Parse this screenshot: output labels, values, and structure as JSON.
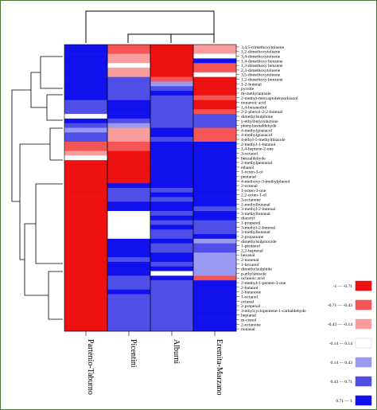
{
  "chart_data": {
    "type": "heatmap",
    "columns": [
      "Partenio-Taburno",
      "Picentini",
      "Alburni",
      "Eremita-Marzano"
    ],
    "rows": [
      "3,4,5-trimethoxytoluene",
      "1,2-dimethoxytoluene",
      "3,4-dimethoxytoluene",
      "1,4-dimethoxy benzene",
      "1,3-dimethoxy benzene",
      "2,3-dimethoxytoluene",
      "3,5-dimethoxytoluene",
      "1,2-dimethoxy benzene",
      "1-2-butenal",
      "pyrrole",
      "m-methylanisole",
      "2-methyl-mercaptobenzothiazol",
      "nonanoic acid",
      "1,4-butanediol",
      "2-2-phenyl-2-2-butenal",
      "dimethylsulphone",
      "y-ethylbutyrolactone",
      "phenylacetaldehyde",
      "4-methylguaiacol",
      "4-methylguaiacol",
      "4-ethyl-5-methylthiazole",
      "2-methyl-1-butanol",
      "1,4-heptene-2-one",
      "3-octanol",
      "benzaldehyde",
      "2-methylpentanal",
      "ethanol",
      "1-octen-3-ol",
      "pentanal",
      "4-methoxy-3-methylphenol",
      "2-octenal",
      "1-octen-3-one",
      "2,2-octen-1-ol",
      "3-octanone",
      "2-methylbutanal",
      "3-methyl-2-butenal",
      "3-methylbutanal",
      "diacetyl",
      "1-propanol",
      "3-methyl-2-butenal",
      "3-methylbutanal",
      "2-propanone",
      "dimethylsulphoxide",
      "1-pentanol",
      "2,2-heptenal",
      "hexanal",
      "2-nonenal",
      "1-hexanol",
      "dimethylsulphide",
      "p-ethylanisole",
      "octanoic acid",
      "2-methyl-1-penten-3-one",
      "2-butanol",
      "2-butanone",
      "1-octanol",
      "octanal",
      "2-propenal",
      "3-ethylcyclopentene-1-carbaldehyde",
      "heptanal",
      "m-cresol",
      "2-octanone",
      "nonanal"
    ],
    "values": [
      [
        0.9,
        -0.5,
        -0.9,
        -0.2
      ],
      [
        0.9,
        -0.6,
        -0.9,
        -0.3
      ],
      [
        0.9,
        -0.3,
        -0.9,
        0.1
      ],
      [
        0.9,
        -0.2,
        -0.8,
        0.8
      ],
      [
        0.9,
        -0.1,
        -0.8,
        -0.6
      ],
      [
        0.9,
        -0.3,
        -0.9,
        -0.5
      ],
      [
        0.9,
        -0.2,
        -0.9,
        0.0
      ],
      [
        0.85,
        0.5,
        -0.6,
        -0.9
      ],
      [
        0.8,
        0.6,
        0.4,
        -0.9
      ],
      [
        0.8,
        0.6,
        0.5,
        -0.9
      ],
      [
        0.8,
        0.7,
        0.8,
        -0.9
      ],
      [
        0.75,
        0.7,
        0.7,
        -0.7
      ],
      [
        0.7,
        0.8,
        0.6,
        -0.8
      ],
      [
        0.6,
        0.8,
        0.7,
        -0.8
      ],
      [
        0.6,
        0.8,
        0.7,
        -0.6
      ],
      [
        0.0,
        0.8,
        0.6,
        0.5
      ],
      [
        0.9,
        0.6,
        0.6,
        0.6
      ],
      [
        0.7,
        0.3,
        0.6,
        0.5
      ],
      [
        0.4,
        -0.2,
        0.9,
        -0.6
      ],
      [
        0.5,
        -0.2,
        0.8,
        -0.7
      ],
      [
        0.6,
        -0.3,
        0.5,
        -0.5
      ],
      [
        -0.5,
        -0.7,
        0.9,
        0.8
      ],
      [
        -0.5,
        -0.7,
        0.9,
        0.8
      ],
      [
        -0.3,
        -0.8,
        0.9,
        0.8
      ],
      [
        0.0,
        -0.8,
        0.9,
        0.8
      ],
      [
        -0.9,
        -0.8,
        0.8,
        0.8
      ],
      [
        -0.9,
        -0.8,
        0.8,
        0.8
      ],
      [
        -0.9,
        -0.8,
        0.9,
        0.8
      ],
      [
        -0.9,
        -0.8,
        0.9,
        0.8
      ],
      [
        -0.9,
        -0.8,
        0.9,
        0.9
      ],
      [
        -0.9,
        0.9,
        0.9,
        0.9
      ],
      [
        -0.9,
        0.5,
        0.5,
        0.8
      ],
      [
        -0.9,
        0.7,
        0.9,
        0.9
      ],
      [
        -0.9,
        0.7,
        0.5,
        0.9
      ],
      [
        -0.9,
        0.8,
        0.9,
        0.9
      ],
      [
        -0.9,
        0.8,
        0.9,
        0.6
      ],
      [
        -0.9,
        0.0,
        0.7,
        0.8
      ],
      [
        -0.9,
        0.0,
        0.9,
        0.8
      ],
      [
        -0.9,
        0.0,
        0.6,
        0.7
      ],
      [
        -0.9,
        0.0,
        0.9,
        0.7
      ],
      [
        -0.9,
        0.0,
        0.7,
        0.7
      ],
      [
        -0.9,
        0.0,
        0.7,
        0.8
      ],
      [
        -0.9,
        0.8,
        0.8,
        0.3
      ],
      [
        -0.9,
        0.9,
        0.6,
        0.5
      ],
      [
        -0.9,
        0.9,
        0.7,
        0.5
      ],
      [
        -0.9,
        0.9,
        0.8,
        0.3
      ],
      [
        -0.9,
        0.7,
        0.8,
        0.3
      ],
      [
        -0.9,
        0.9,
        0.7,
        0.3
      ],
      [
        -0.9,
        0.9,
        0.8,
        0.3
      ],
      [
        -0.9,
        0.8,
        0.0,
        0.3
      ],
      [
        -0.9,
        0.6,
        0.9,
        -0.5
      ],
      [
        -0.9,
        0.5,
        0.6,
        0.8
      ],
      [
        -0.9,
        0.6,
        0.7,
        0.8
      ],
      [
        -0.9,
        0.8,
        0.6,
        0.8
      ],
      [
        -0.9,
        0.7,
        0.6,
        0.8
      ],
      [
        -0.9,
        0.7,
        0.6,
        0.8
      ],
      [
        -0.9,
        0.7,
        0.6,
        0.8
      ],
      [
        -0.9,
        0.7,
        0.5,
        0.8
      ],
      [
        -0.9,
        0.7,
        0.5,
        0.8
      ],
      [
        -0.9,
        0.7,
        0.5,
        0.8
      ],
      [
        -0.9,
        0.5,
        0.7,
        0.8
      ],
      [
        -0.9,
        0.7,
        0.6,
        0.8
      ]
    ],
    "legend": [
      {
        "label": "-1 — -0.71",
        "color": "#ee1111"
      },
      {
        "label": "-0.71 — -0.43",
        "color": "#f55555"
      },
      {
        "label": "-0.43 — -0.14",
        "color": "#f89c9c"
      },
      {
        "label": "-0.14 — 0.14",
        "color": "#ffffff"
      },
      {
        "label": "0.14 — 0.43",
        "color": "#9a9af2"
      },
      {
        "label": "0.43 — 0.71",
        "color": "#4f4fe8"
      },
      {
        "label": "0.71 — 1",
        "color": "#1111ee"
      }
    ],
    "legend_position": "right",
    "dendrograms": "rows-left, columns-top"
  }
}
